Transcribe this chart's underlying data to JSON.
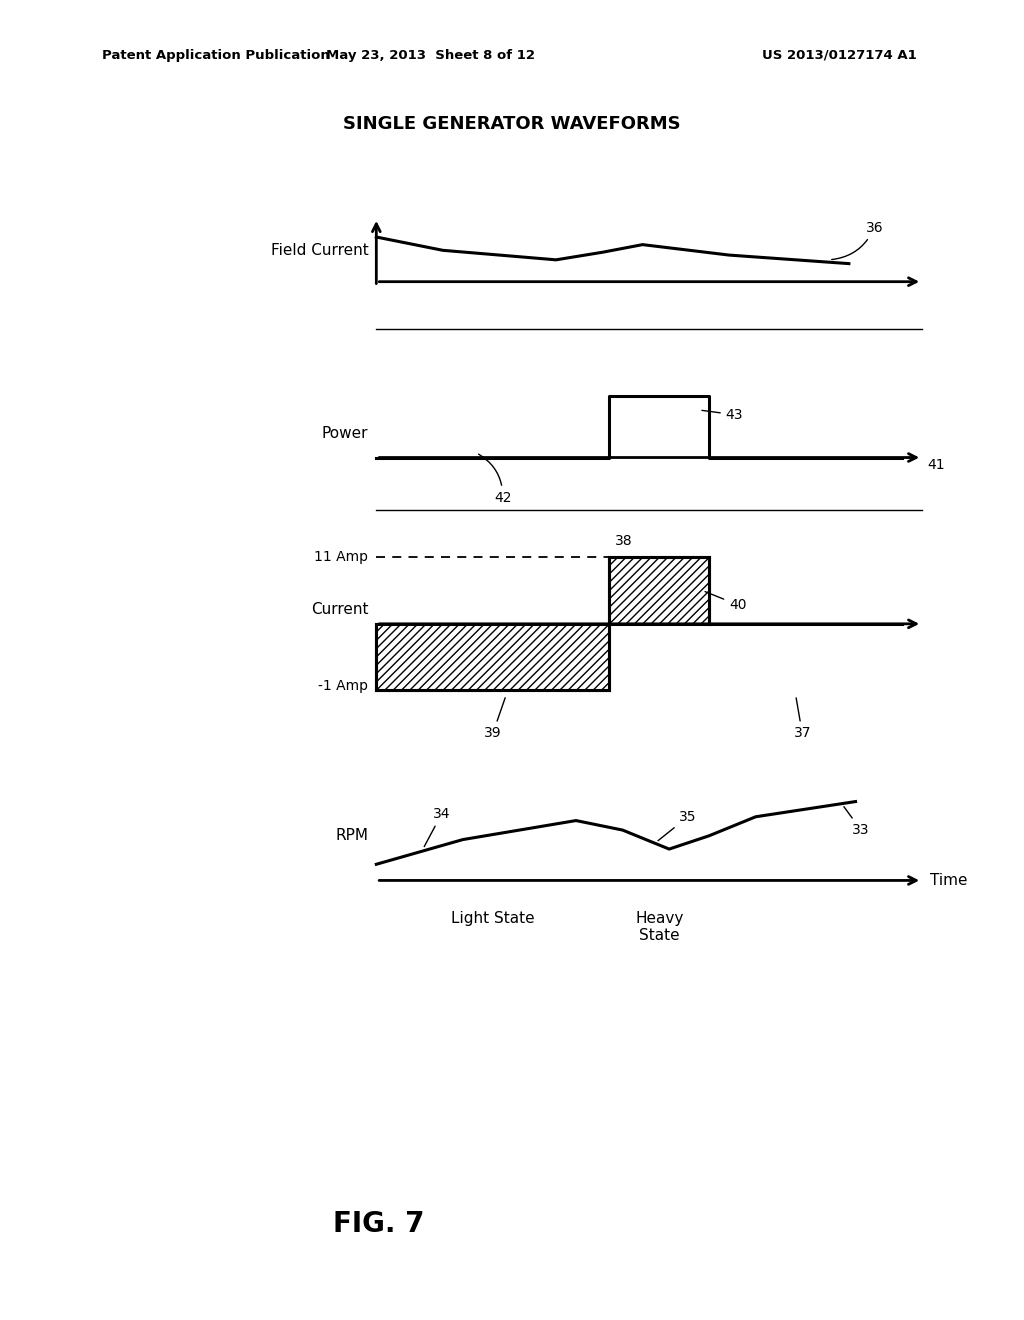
{
  "title": "SINGLE GENERATOR WAVEFORMS",
  "patent_left": "Patent Application Publication",
  "patent_mid": "May 23, 2013  Sheet 8 of 12",
  "patent_right": "US 2013/0127174 A1",
  "fig_label": "FIG. 7",
  "background_color": "#ffffff",
  "text_color": "#000000",
  "subplot_labels": {
    "field_current": "Field Current",
    "power": "Power",
    "current": "Current",
    "rpm": "RPM"
  },
  "y_labels": {
    "amp11": "11 Amp",
    "amp_neg1": "-1 Amp"
  },
  "x_labels": {
    "light": "Light State",
    "heavy": "Heavy\nState",
    "time": "Time"
  },
  "ref_nums": [
    "36",
    "42",
    "43",
    "41",
    "38",
    "40",
    "39",
    "37",
    "34",
    "35",
    "33"
  ]
}
